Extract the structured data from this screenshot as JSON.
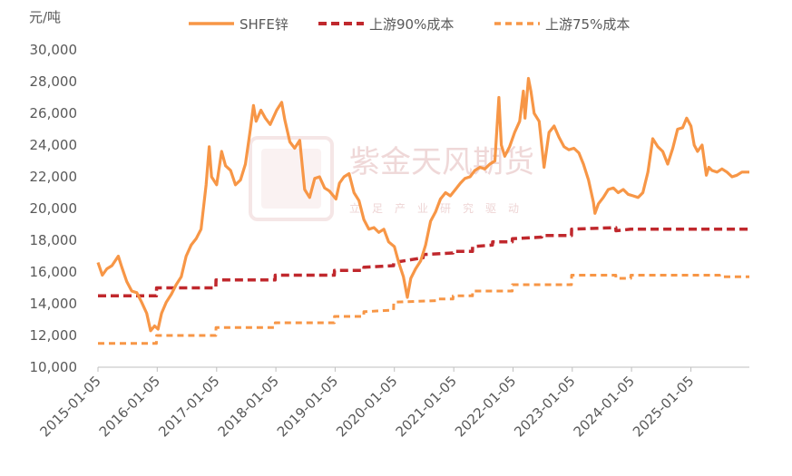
{
  "chart_data": {
    "type": "line",
    "unit_label": "元/吨",
    "ylim": [
      10000,
      30000
    ],
    "y_ticks": [
      10000,
      12000,
      14000,
      16000,
      18000,
      20000,
      22000,
      24000,
      26000,
      28000,
      30000
    ],
    "y_tick_labels": [
      "10,000",
      "12,000",
      "14,000",
      "16,000",
      "18,000",
      "20,000",
      "22,000",
      "24,000",
      "26,000",
      "28,000",
      "30,000"
    ],
    "x_range": [
      "2015-01-05",
      "2025-12-31"
    ],
    "x_ticks": [
      "2015-01-05",
      "2016-01-05",
      "2017-01-05",
      "2018-01-05",
      "2019-01-05",
      "2020-01-05",
      "2021-01-05",
      "2022-01-05",
      "2023-01-05",
      "2024-01-05",
      "2025-01-05"
    ],
    "legend_position": "top",
    "grid": false,
    "series": [
      {
        "name": "SHFE锌",
        "style": "solid",
        "color": "#F79646",
        "points": [
          [
            "2015-01-05",
            16600
          ],
          [
            "2015-02-01",
            15800
          ],
          [
            "2015-03-01",
            16200
          ],
          [
            "2015-04-01",
            16400
          ],
          [
            "2015-05-10",
            17000
          ],
          [
            "2015-06-01",
            16300
          ],
          [
            "2015-07-01",
            15400
          ],
          [
            "2015-08-01",
            14800
          ],
          [
            "2015-09-01",
            14700
          ],
          [
            "2015-10-01",
            14100
          ],
          [
            "2015-11-01",
            13400
          ],
          [
            "2015-11-25",
            12300
          ],
          [
            "2015-12-20",
            12600
          ],
          [
            "2016-01-10",
            12400
          ],
          [
            "2016-02-01",
            13400
          ],
          [
            "2016-03-01",
            14100
          ],
          [
            "2016-04-01",
            14600
          ],
          [
            "2016-05-01",
            15200
          ],
          [
            "2016-06-01",
            15700
          ],
          [
            "2016-07-01",
            17000
          ],
          [
            "2016-08-01",
            17700
          ],
          [
            "2016-09-01",
            18100
          ],
          [
            "2016-10-01",
            18700
          ],
          [
            "2016-11-01",
            21500
          ],
          [
            "2016-11-20",
            23900
          ],
          [
            "2016-12-05",
            22000
          ],
          [
            "2017-01-05",
            21500
          ],
          [
            "2017-02-05",
            23600
          ],
          [
            "2017-03-01",
            22700
          ],
          [
            "2017-04-01",
            22400
          ],
          [
            "2017-05-01",
            21500
          ],
          [
            "2017-06-01",
            21800
          ],
          [
            "2017-07-01",
            22800
          ],
          [
            "2017-08-01",
            25000
          ],
          [
            "2017-08-20",
            26500
          ],
          [
            "2017-09-05",
            25500
          ],
          [
            "2017-10-05",
            26200
          ],
          [
            "2017-11-01",
            25700
          ],
          [
            "2017-12-01",
            25300
          ],
          [
            "2018-01-10",
            26200
          ],
          [
            "2018-02-10",
            26700
          ],
          [
            "2018-03-01",
            25600
          ],
          [
            "2018-04-01",
            24200
          ],
          [
            "2018-05-01",
            23800
          ],
          [
            "2018-06-01",
            24300
          ],
          [
            "2018-07-01",
            21200
          ],
          [
            "2018-08-01",
            20700
          ],
          [
            "2018-09-01",
            21900
          ],
          [
            "2018-10-01",
            22000
          ],
          [
            "2018-11-01",
            21300
          ],
          [
            "2018-12-01",
            21100
          ],
          [
            "2019-01-10",
            20600
          ],
          [
            "2019-02-01",
            21600
          ],
          [
            "2019-03-01",
            22000
          ],
          [
            "2019-04-01",
            22200
          ],
          [
            "2019-05-01",
            21000
          ],
          [
            "2019-06-01",
            20500
          ],
          [
            "2019-07-01",
            19300
          ],
          [
            "2019-08-01",
            18700
          ],
          [
            "2019-09-01",
            18800
          ],
          [
            "2019-10-01",
            18500
          ],
          [
            "2019-11-01",
            18700
          ],
          [
            "2019-12-01",
            17900
          ],
          [
            "2020-01-05",
            17600
          ],
          [
            "2020-02-01",
            16600
          ],
          [
            "2020-03-01",
            15700
          ],
          [
            "2020-03-25",
            14400
          ],
          [
            "2020-04-15",
            15600
          ],
          [
            "2020-05-15",
            16200
          ],
          [
            "2020-06-15",
            16700
          ],
          [
            "2020-07-15",
            17700
          ],
          [
            "2020-08-15",
            19200
          ],
          [
            "2020-09-15",
            19800
          ],
          [
            "2020-10-15",
            20600
          ],
          [
            "2020-11-15",
            21000
          ],
          [
            "2020-12-15",
            20800
          ],
          [
            "2021-01-15",
            21200
          ],
          [
            "2021-02-15",
            21600
          ],
          [
            "2021-03-15",
            21900
          ],
          [
            "2021-04-15",
            22000
          ],
          [
            "2021-05-15",
            22400
          ],
          [
            "2021-06-15",
            22600
          ],
          [
            "2021-07-15",
            22500
          ],
          [
            "2021-08-15",
            22800
          ],
          [
            "2021-09-15",
            23000
          ],
          [
            "2021-10-10",
            27000
          ],
          [
            "2021-10-25",
            24000
          ],
          [
            "2021-11-15",
            23300
          ],
          [
            "2021-12-15",
            23900
          ],
          [
            "2022-01-15",
            24800
          ],
          [
            "2022-02-15",
            25500
          ],
          [
            "2022-03-10",
            27400
          ],
          [
            "2022-03-20",
            25700
          ],
          [
            "2022-04-10",
            28200
          ],
          [
            "2022-04-25",
            27400
          ],
          [
            "2022-05-15",
            26000
          ],
          [
            "2022-06-15",
            25500
          ],
          [
            "2022-07-15",
            22600
          ],
          [
            "2022-08-15",
            24800
          ],
          [
            "2022-09-15",
            25200
          ],
          [
            "2022-10-15",
            24500
          ],
          [
            "2022-11-15",
            23900
          ],
          [
            "2022-12-15",
            23700
          ],
          [
            "2023-01-15",
            23800
          ],
          [
            "2023-02-15",
            23500
          ],
          [
            "2023-03-15",
            22800
          ],
          [
            "2023-04-15",
            21800
          ],
          [
            "2023-05-15",
            20400
          ],
          [
            "2023-05-25",
            19700
          ],
          [
            "2023-06-15",
            20300
          ],
          [
            "2023-07-15",
            20700
          ],
          [
            "2023-08-15",
            21200
          ],
          [
            "2023-09-15",
            21300
          ],
          [
            "2023-10-15",
            21000
          ],
          [
            "2023-11-15",
            21200
          ],
          [
            "2023-12-15",
            20900
          ],
          [
            "2024-01-15",
            20800
          ],
          [
            "2024-02-15",
            20700
          ],
          [
            "2024-03-15",
            21000
          ],
          [
            "2024-04-15",
            22300
          ],
          [
            "2024-05-15",
            24400
          ],
          [
            "2024-06-15",
            23900
          ],
          [
            "2024-07-15",
            23600
          ],
          [
            "2024-08-15",
            22800
          ],
          [
            "2024-09-15",
            23800
          ],
          [
            "2024-10-15",
            25000
          ],
          [
            "2024-11-15",
            25100
          ],
          [
            "2024-12-10",
            25700
          ],
          [
            "2025-01-05",
            25200
          ],
          [
            "2025-01-25",
            24000
          ],
          [
            "2025-02-15",
            23600
          ],
          [
            "2025-03-15",
            24000
          ],
          [
            "2025-04-10",
            22100
          ],
          [
            "2025-04-25",
            22600
          ],
          [
            "2025-05-15",
            22400
          ],
          [
            "2025-06-15",
            22300
          ],
          [
            "2025-07-15",
            22500
          ],
          [
            "2025-08-15",
            22300
          ],
          [
            "2025-09-15",
            22000
          ],
          [
            "2025-10-15",
            22100
          ],
          [
            "2025-11-15",
            22300
          ],
          [
            "2025-12-31",
            22300
          ]
        ]
      },
      {
        "name": "上游90%成本",
        "style": "dashed",
        "color": "#C0282D",
        "points": [
          [
            "2015-01-05",
            14500
          ],
          [
            "2015-12-31",
            14500
          ],
          [
            "2016-01-01",
            15000
          ],
          [
            "2016-12-31",
            15000
          ],
          [
            "2017-01-01",
            15500
          ],
          [
            "2017-12-31",
            15500
          ],
          [
            "2018-01-01",
            15800
          ],
          [
            "2018-12-31",
            15800
          ],
          [
            "2019-01-01",
            16100
          ],
          [
            "2019-06-30",
            16100
          ],
          [
            "2019-07-01",
            16300
          ],
          [
            "2019-12-31",
            16400
          ],
          [
            "2020-01-01",
            16600
          ],
          [
            "2020-06-30",
            16900
          ],
          [
            "2020-07-01",
            17100
          ],
          [
            "2020-12-31",
            17200
          ],
          [
            "2021-01-01",
            17300
          ],
          [
            "2021-04-30",
            17300
          ],
          [
            "2021-05-01",
            17600
          ],
          [
            "2021-08-31",
            17700
          ],
          [
            "2021-09-01",
            17900
          ],
          [
            "2021-12-31",
            17900
          ],
          [
            "2022-01-01",
            18100
          ],
          [
            "2022-06-30",
            18200
          ],
          [
            "2022-07-01",
            18300
          ],
          [
            "2022-12-31",
            18300
          ],
          [
            "2023-01-01",
            18700
          ],
          [
            "2023-09-30",
            18800
          ],
          [
            "2023-10-01",
            18600
          ],
          [
            "2023-12-31",
            18700
          ],
          [
            "2024-01-01",
            18700
          ],
          [
            "2025-03-31",
            18700
          ],
          [
            "2025-04-01",
            18700
          ],
          [
            "2025-12-31",
            18700
          ]
        ]
      },
      {
        "name": "上游75%成本",
        "style": "dashed",
        "color": "#F79646",
        "points": [
          [
            "2015-01-05",
            11500
          ],
          [
            "2015-12-31",
            11500
          ],
          [
            "2016-01-01",
            12000
          ],
          [
            "2016-12-31",
            12000
          ],
          [
            "2017-01-01",
            12500
          ],
          [
            "2017-12-31",
            12500
          ],
          [
            "2018-01-01",
            12800
          ],
          [
            "2018-12-31",
            12800
          ],
          [
            "2019-01-01",
            13200
          ],
          [
            "2019-06-30",
            13200
          ],
          [
            "2019-07-01",
            13500
          ],
          [
            "2019-12-31",
            13600
          ],
          [
            "2020-01-01",
            14100
          ],
          [
            "2020-09-30",
            14200
          ],
          [
            "2020-10-01",
            14300
          ],
          [
            "2020-12-31",
            14300
          ],
          [
            "2021-01-01",
            14500
          ],
          [
            "2021-04-30",
            14500
          ],
          [
            "2021-05-01",
            14800
          ],
          [
            "2021-12-31",
            14800
          ],
          [
            "2022-01-01",
            15200
          ],
          [
            "2022-12-31",
            15200
          ],
          [
            "2023-01-01",
            15800
          ],
          [
            "2023-09-30",
            15800
          ],
          [
            "2023-10-01",
            15600
          ],
          [
            "2023-12-31",
            15600
          ],
          [
            "2024-01-01",
            15800
          ],
          [
            "2025-06-30",
            15800
          ],
          [
            "2025-07-01",
            15700
          ],
          [
            "2025-12-31",
            15700
          ]
        ]
      }
    ]
  },
  "watermark": {
    "main_text": "紫金天风期货",
    "sub_text": "立足产业研究驱动",
    "color": "#E3B9B9"
  }
}
